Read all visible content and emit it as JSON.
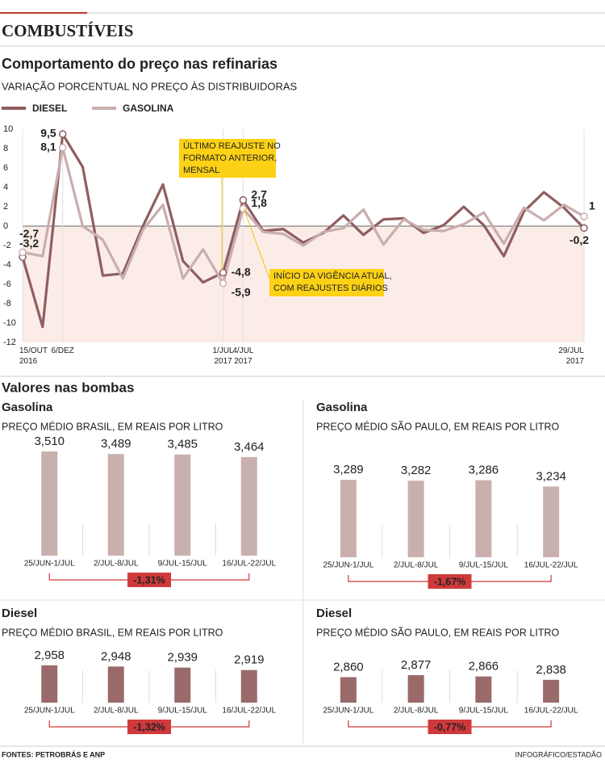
{
  "header": {
    "section": "COMBUSTÍVEIS",
    "pumps_title": "Valores nas bombas",
    "source": "FONTES: PETROBRÁS E ANP",
    "credit": "INFOGRÁFICO/ESTADÃO"
  },
  "chart_data": [
    {
      "type": "line",
      "title": "Comportamento do preço nas refinarias",
      "subtitle": "VARIAÇÃO PORCENTUAL NO PREÇO ÀS DISTRIBUIDORAS",
      "categories": [
        "15/OUT 2016",
        null,
        "6/DEZ",
        null,
        null,
        null,
        null,
        null,
        null,
        null,
        "1/JUL 2017",
        "4/JUL 2017",
        null,
        null,
        null,
        null,
        null,
        null,
        null,
        null,
        null,
        null,
        null,
        null,
        null,
        null,
        null,
        null,
        "29/JUL 2017"
      ],
      "series": [
        {
          "name": "DIESEL",
          "color": "#8f5e60",
          "values": [
            -3.2,
            -10.4,
            9.5,
            6.1,
            -5.1,
            -4.9,
            0,
            4.3,
            -3.6,
            -5.8,
            -4.8,
            2.7,
            -0.5,
            -0.3,
            -1.7,
            -0.7,
            1.1,
            -0.9,
            0.7,
            0.8,
            -0.7,
            0.1,
            2,
            0.1,
            -3.1,
            1.5,
            3.5,
            1.9,
            -0.2
          ],
          "value_labels": [
            "-3,2",
            null,
            "9,5",
            null,
            null,
            null,
            null,
            null,
            null,
            null,
            "-4,8",
            "2,7",
            null,
            null,
            null,
            null,
            null,
            null,
            null,
            null,
            null,
            null,
            null,
            null,
            null,
            null,
            null,
            null,
            "-0,2"
          ]
        },
        {
          "name": "GASOLINA",
          "color": "#c9aeae",
          "values": [
            -2.7,
            -3.1,
            8.1,
            0,
            -1.4,
            -5.4,
            -0.4,
            2.2,
            -5.4,
            -2.4,
            -5.9,
            1.8,
            -0.6,
            -0.8,
            -2,
            -0.6,
            -0.2,
            1.7,
            -1.9,
            0.7,
            -0.4,
            -0.5,
            0.2,
            1.4,
            -1.8,
            1.9,
            0.6,
            2.2,
            1
          ],
          "value_labels": [
            "-2,7",
            null,
            "8,1",
            null,
            null,
            null,
            null,
            null,
            null,
            null,
            "-5,9",
            "1,8",
            null,
            null,
            null,
            null,
            null,
            null,
            null,
            null,
            null,
            null,
            null,
            null,
            null,
            null,
            null,
            null,
            "1"
          ]
        }
      ],
      "ylim": [
        -12,
        10
      ],
      "yticks": [
        10,
        8,
        6,
        4,
        2,
        0,
        -2,
        -4,
        -6,
        -8,
        -10,
        -12
      ],
      "annotations": [
        [
          "ÚLTIMO REAJUSTE NO",
          "FORMATO ANTERIOR,",
          "MENSAL"
        ],
        [
          "INÍCIO DA VIGÊNCIA ATUAL,",
          "COM REAJUSTES DIÁRIOS"
        ]
      ]
    },
    {
      "type": "bar",
      "title": "Gasolina",
      "subtitle": "PREÇO MÉDIO BRASIL, EM REAIS POR LITRO",
      "categories": [
        "25/JUN-1/JUL",
        "2/JUL-8/JUL",
        "9/JUL-15/JUL",
        "16/JUL-22/JUL"
      ],
      "values": [
        3.51,
        3.489,
        3.485,
        3.464
      ],
      "value_labels": [
        "3,510",
        "3,489",
        "3,485",
        "3,464"
      ],
      "color": "#c9b0ae",
      "ylim": [
        2.65,
        3.65
      ],
      "change_label": "-1,31%"
    },
    {
      "type": "bar",
      "title": "Gasolina",
      "subtitle": "PREÇO MÉDIO SÃO PAULO, EM REAIS POR LITRO",
      "categories": [
        "25/JUN-1/JUL",
        "2/JUL-8/JUL",
        "9/JUL-15/JUL",
        "16/JUL-22/JUL"
      ],
      "values": [
        3.289,
        3.282,
        3.286,
        3.234
      ],
      "value_labels": [
        "3,289",
        "3,282",
        "3,286",
        "3,234"
      ],
      "color": "#c9b0ae",
      "ylim": [
        2.65,
        3.65
      ],
      "change_label": "-1,67%"
    },
    {
      "type": "bar",
      "title": "Diesel",
      "subtitle": "PREÇO MÉDIO BRASIL, EM REAIS POR LITRO",
      "categories": [
        "25/JUN-1/JUL",
        "2/JUL-8/JUL",
        "9/JUL-15/JUL",
        "16/JUL-22/JUL"
      ],
      "values": [
        2.958,
        2.948,
        2.939,
        2.919
      ],
      "value_labels": [
        "2,958",
        "2,948",
        "2,939",
        "2,919"
      ],
      "color": "#9a6a6a",
      "ylim": [
        2.65,
        3.65
      ],
      "change_label": "-1,32%"
    },
    {
      "type": "bar",
      "title": "Diesel",
      "subtitle": "PREÇO MÉDIO SÃO PAULO, EM REAIS POR LITRO",
      "categories": [
        "25/JUN-1/JUL",
        "2/JUL-8/JUL",
        "9/JUL-15/JUL",
        "16/JUL-22/JUL"
      ],
      "values": [
        2.86,
        2.877,
        2.866,
        2.838
      ],
      "value_labels": [
        "2,860",
        "2,877",
        "2,866",
        "2,838"
      ],
      "color": "#9a6a6a",
      "ylim": [
        2.65,
        3.65
      ],
      "change_label": "-0,77%"
    }
  ]
}
